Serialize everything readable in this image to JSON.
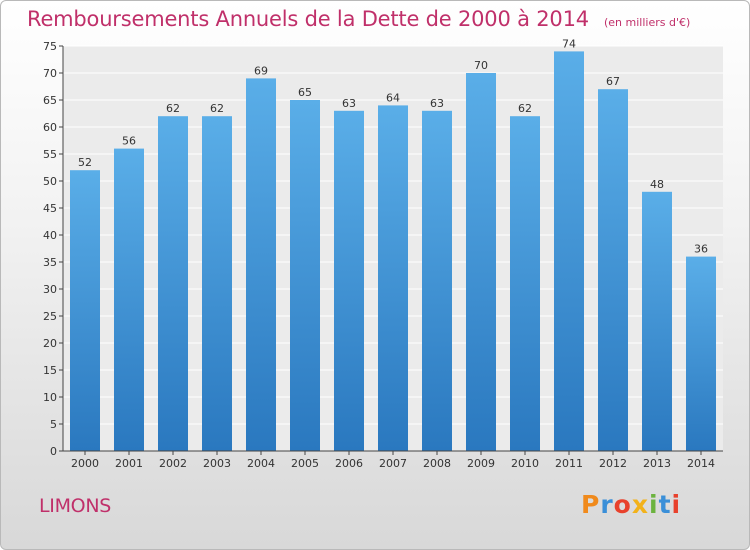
{
  "header": {
    "title": "Remboursements Annuels de la Dette de 2000 à 2014",
    "unit": "(en milliers d'€)"
  },
  "footer": {
    "commune": "LIMONS",
    "logo_text": "Proxiti",
    "logo_colors": [
      "#f08a1c",
      "#3a8fd8",
      "#e8412c",
      "#f2b21a",
      "#6cb33f",
      "#3a8fd8",
      "#e8412c"
    ]
  },
  "chart_data": {
    "type": "bar",
    "title": "Remboursements Annuels de la Dette de 2000 à 2014",
    "categories": [
      "2000",
      "2001",
      "2002",
      "2003",
      "2004",
      "2005",
      "2006",
      "2007",
      "2008",
      "2009",
      "2010",
      "2011",
      "2012",
      "2013",
      "2014"
    ],
    "values": [
      52,
      56,
      62,
      62,
      69,
      65,
      63,
      64,
      63,
      70,
      62,
      74,
      67,
      48,
      36
    ],
    "data_labels": [
      "52",
      "56",
      "62",
      "62",
      "69",
      "65",
      "63",
      "64",
      "63",
      "70",
      "62",
      "74",
      "67",
      "48",
      "36"
    ],
    "ylim": [
      0,
      75
    ],
    "yticks": [
      "0",
      "5",
      "10",
      "15",
      "20",
      "25",
      "30",
      "35",
      "40",
      "45",
      "50",
      "55",
      "60",
      "65",
      "70",
      "75"
    ],
    "grid": true,
    "bar_color_top": "#5aaee8",
    "bar_color_bottom": "#2a78bf",
    "plot_bg": "#ebebeb",
    "grid_color": "#ffffff"
  }
}
